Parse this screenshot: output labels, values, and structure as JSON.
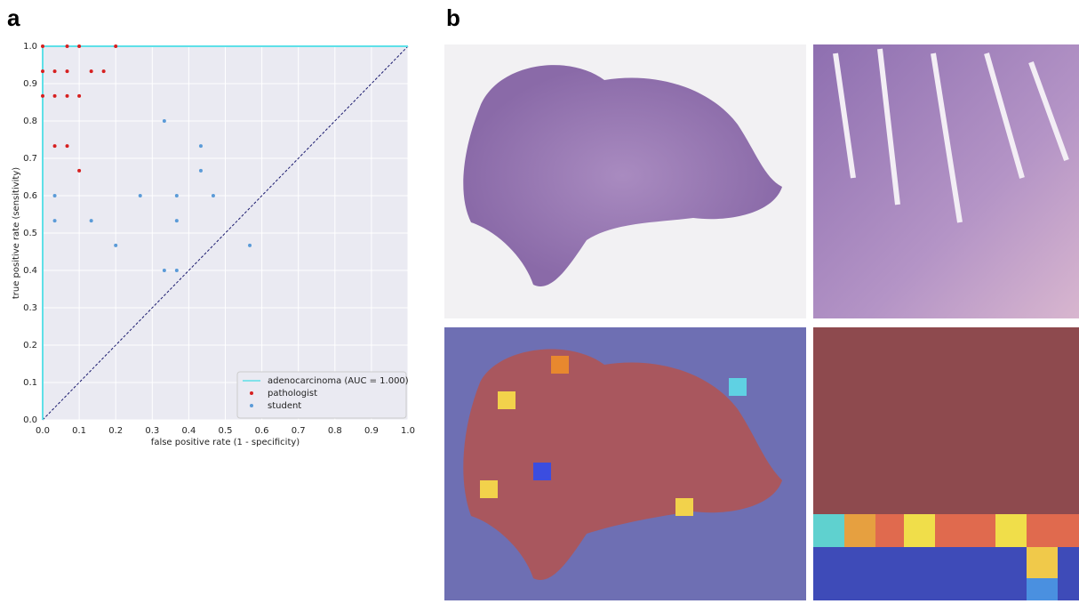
{
  "panel_labels": [
    "a",
    "b"
  ],
  "chart_data": {
    "type": "scatter",
    "x_label": "false positive rate (1 - specificity)",
    "y_label": "true positive rate (sensitivity)",
    "xlim": [
      0,
      1
    ],
    "ylim": [
      0,
      1
    ],
    "xticks": [
      {
        "value": 0,
        "label": "0.0"
      },
      0.1,
      0.2,
      0.3,
      0.4,
      0.5,
      0.6,
      0.7,
      0.8,
      0.9,
      {
        "value": 1,
        "label": "1.0"
      }
    ],
    "yticks": [
      {
        "value": 0,
        "label": "0.0"
      },
      0.1,
      0.2,
      0.3,
      0.4,
      0.5,
      0.6,
      0.7,
      0.8,
      0.9,
      {
        "value": 1,
        "label": "1.0"
      }
    ],
    "grid": true,
    "legend": "lower right",
    "series": [
      {
        "name": "adenocarcinoma (AUC = 1.000)",
        "color": "#5ee0e8",
        "style": "line",
        "x": [
          0,
          0,
          1
        ],
        "y": [
          0,
          1,
          1
        ]
      },
      {
        "name": "pathologist",
        "color": "#d62020",
        "style": "points",
        "x": [
          0,
          0.067,
          0.1,
          0.2,
          0,
          0.033,
          0.067,
          0.133,
          0.167,
          0,
          0.033,
          0.067,
          0.1,
          0.033,
          0.067,
          0.1
        ],
        "y": [
          1,
          1,
          1,
          1,
          0.933,
          0.933,
          0.933,
          0.933,
          0.933,
          0.867,
          0.867,
          0.867,
          0.867,
          0.733,
          0.733,
          0.667
        ]
      },
      {
        "name": "student",
        "color": "#5b9bd8",
        "style": "points",
        "x": [
          0.333,
          0.433,
          0.433,
          0.033,
          0.267,
          0.367,
          0.467,
          0.033,
          0.133,
          0.367,
          0.2,
          0.567,
          0.333,
          0.367
        ],
        "y": [
          0.8,
          0.733,
          0.667,
          0.6,
          0.6,
          0.6,
          0.6,
          0.533,
          0.533,
          0.533,
          0.467,
          0.467,
          0.4,
          0.4
        ]
      }
    ]
  }
}
